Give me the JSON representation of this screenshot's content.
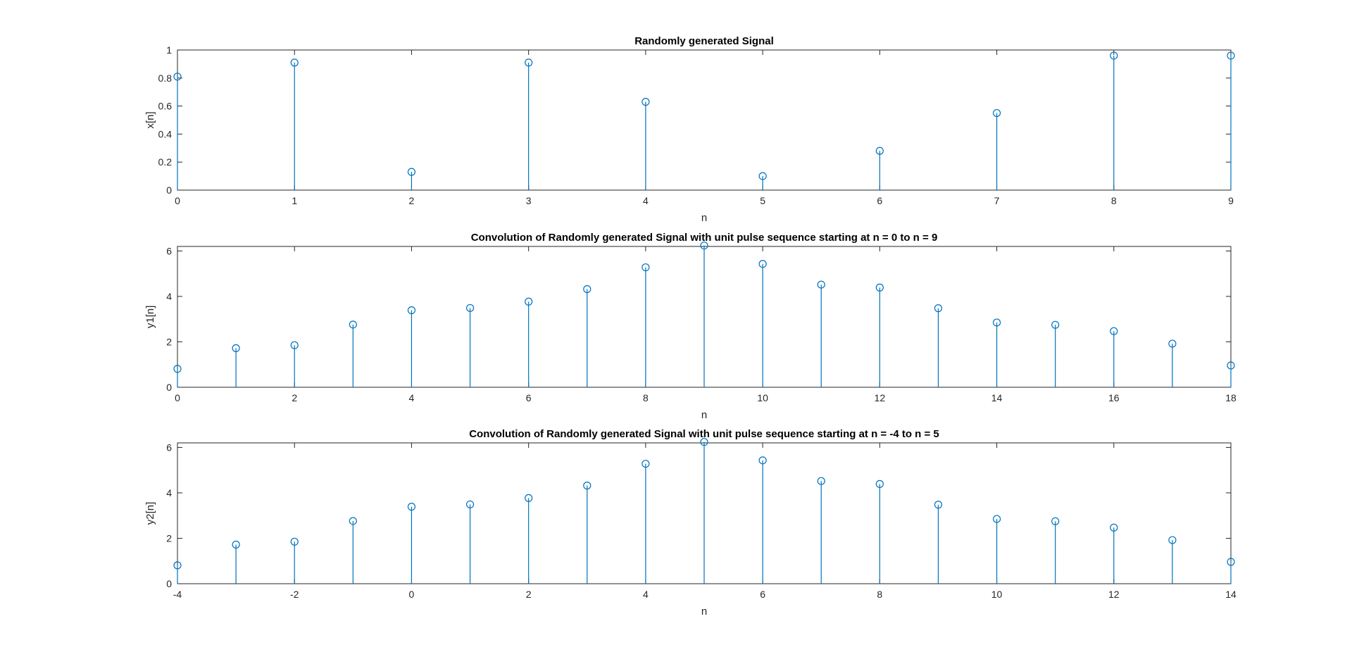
{
  "colors": {
    "stem": "#0072BD",
    "axes": "#262626",
    "background": "#ffffff"
  },
  "chart_data": [
    {
      "type": "stem",
      "title": "Randomly generated Signal",
      "xlabel": "n",
      "ylabel": "x[n]",
      "xlim": [
        0,
        9
      ],
      "ylim": [
        0,
        1
      ],
      "xticks": [
        0,
        1,
        2,
        3,
        4,
        5,
        6,
        7,
        8,
        9
      ],
      "xtick_labels": [
        "0",
        "1",
        "2",
        "3",
        "4",
        "5",
        "6",
        "7",
        "8",
        "9"
      ],
      "yticks": [
        0,
        0.2,
        0.4,
        0.6,
        0.8,
        1
      ],
      "ytick_labels": [
        "0",
        "0.2",
        "0.4",
        "0.6",
        "0.8",
        "1"
      ],
      "x": [
        0,
        1,
        2,
        3,
        4,
        5,
        6,
        7,
        8,
        9
      ],
      "y": [
        0.81,
        0.91,
        0.13,
        0.91,
        0.63,
        0.1,
        0.28,
        0.55,
        0.96,
        0.96
      ],
      "grid": false
    },
    {
      "type": "stem",
      "title": "Convolution of Randomly generated Signal with unit pulse sequence starting at n = 0 to n = 9",
      "xlabel": "n",
      "ylabel": "y1[n]",
      "xlim": [
        0,
        18
      ],
      "ylim": [
        0,
        6.2
      ],
      "xticks": [
        0,
        2,
        4,
        6,
        8,
        10,
        12,
        14,
        16,
        18
      ],
      "xtick_labels": [
        "0",
        "2",
        "4",
        "6",
        "8",
        "10",
        "12",
        "14",
        "16",
        "18"
      ],
      "yticks": [
        0,
        2,
        4,
        6
      ],
      "ytick_labels": [
        "0",
        "2",
        "4",
        "6"
      ],
      "x": [
        0,
        1,
        2,
        3,
        4,
        5,
        6,
        7,
        8,
        9,
        10,
        11,
        12,
        13,
        14,
        15,
        16,
        17,
        18
      ],
      "y": [
        0.81,
        1.72,
        1.85,
        2.76,
        3.39,
        3.49,
        3.77,
        4.32,
        5.28,
        6.24,
        5.43,
        4.52,
        4.39,
        3.48,
        2.85,
        2.75,
        2.47,
        1.92,
        0.96
      ],
      "grid": false
    },
    {
      "type": "stem",
      "title": "Convolution of Randomly generated Signal with unit pulse sequence starting at n = -4 to n = 5",
      "xlabel": "n",
      "ylabel": "y2[n]",
      "xlim": [
        -4,
        14
      ],
      "ylim": [
        0,
        6.2
      ],
      "xticks": [
        -4,
        -2,
        0,
        2,
        4,
        6,
        8,
        10,
        12,
        14
      ],
      "xtick_labels": [
        "-4",
        "-2",
        "0",
        "2",
        "4",
        "6",
        "8",
        "10",
        "12",
        "14"
      ],
      "yticks": [
        0,
        2,
        4,
        6
      ],
      "ytick_labels": [
        "0",
        "2",
        "4",
        "6"
      ],
      "x": [
        -4,
        -3,
        -2,
        -1,
        0,
        1,
        2,
        3,
        4,
        5,
        6,
        7,
        8,
        9,
        10,
        11,
        12,
        13,
        14
      ],
      "y": [
        0.81,
        1.72,
        1.85,
        2.76,
        3.39,
        3.49,
        3.77,
        4.32,
        5.28,
        6.24,
        5.43,
        4.52,
        4.39,
        3.48,
        2.85,
        2.75,
        2.47,
        1.92,
        0.96
      ],
      "grid": false
    }
  ]
}
